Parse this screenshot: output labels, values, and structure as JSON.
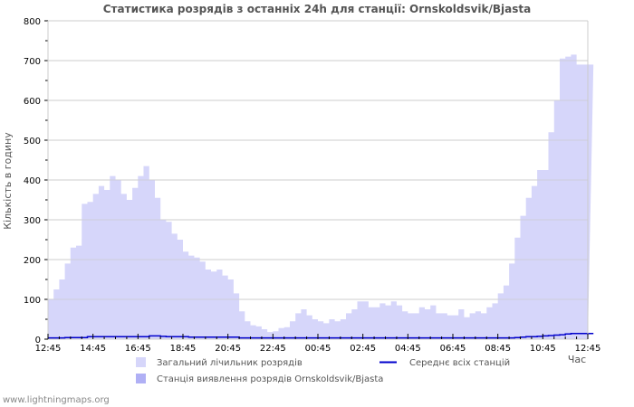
{
  "chart_data": {
    "type": "area",
    "title": "Статистика розрядів з останніх 24h для станції: Ornskoldsvik/Bjasta",
    "xlabel": "Час",
    "ylabel": "Кількість в годину",
    "ylim": [
      0,
      800
    ],
    "yticks": [
      0,
      100,
      200,
      300,
      400,
      500,
      600,
      700,
      800
    ],
    "xticks": [
      "12:45",
      "14:45",
      "16:45",
      "18:45",
      "20:45",
      "22:45",
      "00:45",
      "02:45",
      "04:45",
      "06:45",
      "08:45",
      "10:45",
      "12:45"
    ],
    "grid": true,
    "legend_position": "bottom",
    "interval_minutes": 15,
    "series": [
      {
        "name": "Загальний лічильник розрядів",
        "type": "area",
        "color": "#d6d6fa",
        "values": [
          100,
          125,
          150,
          190,
          230,
          235,
          340,
          345,
          365,
          385,
          375,
          410,
          400,
          365,
          350,
          380,
          410,
          435,
          400,
          355,
          300,
          295,
          265,
          250,
          220,
          210,
          205,
          195,
          175,
          170,
          175,
          160,
          150,
          115,
          70,
          45,
          35,
          32,
          25,
          18,
          20,
          28,
          30,
          45,
          65,
          75,
          60,
          50,
          45,
          40,
          50,
          45,
          50,
          65,
          75,
          95,
          95,
          80,
          80,
          90,
          85,
          95,
          85,
          70,
          65,
          65,
          80,
          75,
          85,
          65,
          65,
          60,
          60,
          75,
          55,
          65,
          70,
          65,
          80,
          90,
          115,
          135,
          190,
          255,
          310,
          355,
          385,
          425,
          425,
          520,
          600,
          705,
          710,
          715,
          690,
          690,
          690
        ]
      },
      {
        "name": "Станція виявлення розрядів Ornskoldsvik/Bjasta",
        "type": "area",
        "color": "#b0b0f5",
        "values": []
      },
      {
        "name": "Середнє всіх станцій",
        "type": "line",
        "color": "#0000cc",
        "values": [
          2,
          2,
          2,
          3,
          3,
          3,
          3,
          5,
          5,
          5,
          5,
          5,
          5,
          5,
          5,
          5,
          5,
          5,
          7,
          7,
          6,
          5,
          5,
          5,
          5,
          4,
          4,
          4,
          4,
          4,
          4,
          4,
          4,
          4,
          2,
          2,
          2,
          2,
          2,
          2,
          2,
          2,
          2,
          2,
          2,
          2,
          2,
          2,
          2,
          2,
          2,
          2,
          2,
          2,
          2,
          2,
          2,
          2,
          2,
          2,
          2,
          2,
          2,
          2,
          2,
          2,
          2,
          2,
          2,
          2,
          2,
          2,
          2,
          2,
          2,
          2,
          2,
          2,
          2,
          2,
          2,
          2,
          2,
          3,
          4,
          5,
          5,
          6,
          7,
          8,
          9,
          10,
          12,
          13,
          13,
          13,
          13
        ]
      }
    ]
  },
  "legend": {
    "items": [
      {
        "label": "Загальний лічильник розрядів",
        "color": "#d6d6fa",
        "kind": "swatch"
      },
      {
        "label": "Середнє всіх станцій",
        "color": "#0000cc",
        "kind": "line"
      },
      {
        "label": "Станція виявлення розрядів Ornskoldsvik/Bjasta",
        "color": "#b0b0f5",
        "kind": "swatch"
      }
    ]
  },
  "footer": {
    "text": "www.lightningmaps.org"
  }
}
